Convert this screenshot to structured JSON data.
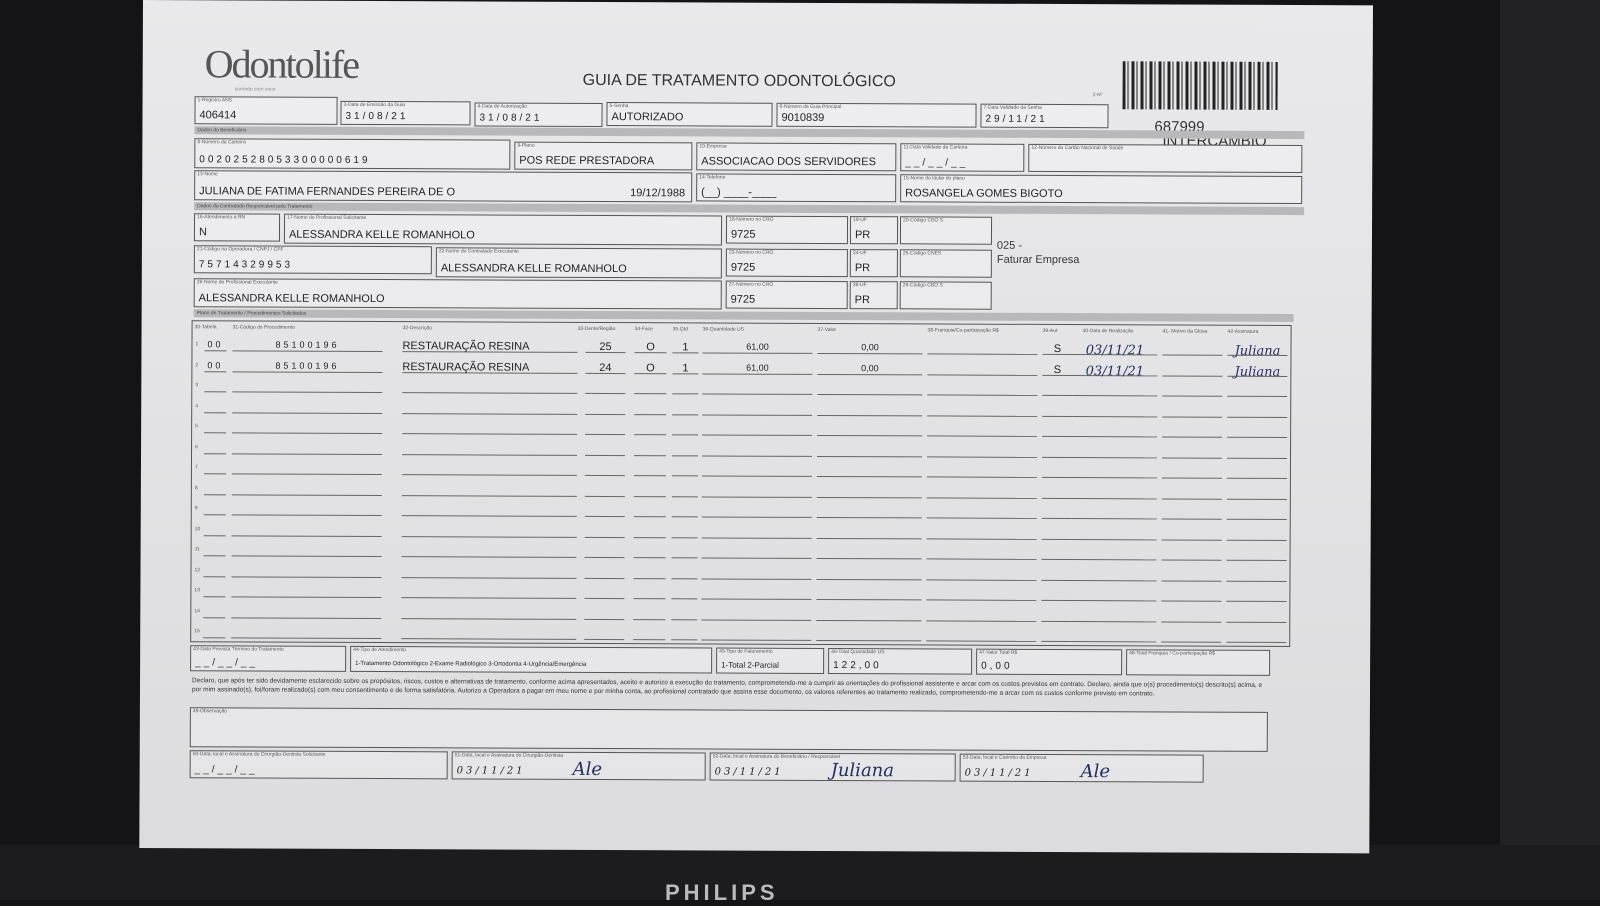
{
  "header": {
    "logo": "Odontolife",
    "logo_tagline": "sorrindo com voce",
    "title": "GUIA DE TRATAMENTO ODONTOLÓGICO",
    "via": "2-Nº",
    "guia_number": "687999",
    "guia_type": "INTERCÂMBIO"
  },
  "fields": {
    "registro_ans": {
      "label": "1-Registro ANS",
      "value": "406414"
    },
    "data_emissao": {
      "label": "3-Data de Emissão da Guia",
      "value": "31/08/21"
    },
    "data_autorizacao": {
      "label": "4-Data de Autorização",
      "value": "31/08/21"
    },
    "senha": {
      "label": "5-Senha",
      "value": "AUTORIZADO"
    },
    "guia_principal": {
      "label": "6-Número da Guia Principal",
      "value": "9010839"
    },
    "validade_senha": {
      "label": "7-Data Validade da Senha",
      "value": "29/11/21"
    },
    "carteira": {
      "label": "8-Número da Carteira",
      "value": "00202528053300000619"
    },
    "plano": {
      "label": "9-Plano",
      "value": "POS REDE PRESTADORA"
    },
    "empresa": {
      "label": "10-Empresa",
      "value": "ASSOCIACAO DOS SERVIDORES"
    },
    "validade_carteira": {
      "label": "11-Data Validade da Carteira",
      "value": "__/__/__"
    },
    "cns": {
      "label": "12-Número do Cartão Nacional de Saúde",
      "value": ""
    },
    "nome": {
      "label": "13-Nome",
      "value": "JULIANA DE FATIMA FERNANDES PEREIRA DE O",
      "birth": "19/12/1988"
    },
    "telefone": {
      "label": "14-Telefone",
      "value": "(__) ____-____"
    },
    "titular": {
      "label": "15-Nome do titular do plano",
      "value": "ROSANGELA GOMES BIGOTO"
    },
    "rn": {
      "label": "16-Atendimento a RN",
      "value": "N"
    },
    "prof_solicitante": {
      "label": "17-Nome do Profissional Solicitante",
      "value": "ALESSANDRA KELLE ROMANHOLO"
    },
    "cro18": {
      "label": "18-Número no CRO",
      "value": "9725"
    },
    "uf19": {
      "label": "19-UF",
      "value": "PR"
    },
    "cbo20": {
      "label": "20-Código CBO S",
      "value": ""
    },
    "cnpj": {
      "label": "21-Código na Operadora / CNPJ / CPF",
      "value": "75714329953"
    },
    "contratado": {
      "label": "22-Nome do Contratado Executante",
      "value": "ALESSANDRA KELLE ROMANHOLO"
    },
    "cro23": {
      "label": "23-Número no CRO",
      "value": "9725"
    },
    "uf24": {
      "label": "24-UF",
      "value": "PR"
    },
    "cnes": {
      "label": "25-Código CNES",
      "value": ""
    },
    "prof_executante": {
      "label": "26-Nome do Profissional Executante",
      "value": "ALESSANDRA KELLE ROMANHOLO"
    },
    "cro27": {
      "label": "27-Número no CRO",
      "value": "9725"
    },
    "uf28": {
      "label": "28-UF",
      "value": "PR"
    },
    "cbo29": {
      "label": "29-Código CBO S",
      "value": ""
    }
  },
  "sections": {
    "beneficiario": "Dados do Beneficiário",
    "contratado": "Dados do Contratado Responsável pelo Tratamento",
    "plano": "Plano de Tratamento / Procedimentos Solicitados"
  },
  "side_note": {
    "code": "025 -",
    "text": "Faturar Empresa"
  },
  "procedures": {
    "headers": [
      "30-Tabela",
      "31-Código do Procedimento",
      "32-Descrição",
      "33-Dente/Região",
      "34-Face",
      "35-Qtd",
      "36-Quantidade US",
      "37-Valor",
      "38-Franquia/Co-participação R$",
      "39-Aut",
      "40-Data de Realização",
      "41- Motivo da Glosa",
      "42-Assinatura"
    ],
    "rows": [
      {
        "n": "1",
        "tabela": "00",
        "codigo": "85100196",
        "descricao": "RESTAURAÇÃO RESINA",
        "dente": "25",
        "face": "O",
        "qtd": "1",
        "us": "61,00",
        "valor": "0,00",
        "franquia": "",
        "aut": "S",
        "data": "03/11/21",
        "glosa": "",
        "assinatura": "Juliana"
      },
      {
        "n": "2",
        "tabela": "00",
        "codigo": "85100196",
        "descricao": "RESTAURAÇÃO RESINA",
        "dente": "24",
        "face": "O",
        "qtd": "1",
        "us": "61,00",
        "valor": "0,00",
        "franquia": "",
        "aut": "S",
        "data": "03/11/21",
        "glosa": "",
        "assinatura": "Juliana"
      },
      {
        "n": "3"
      },
      {
        "n": "4"
      },
      {
        "n": "5"
      },
      {
        "n": "6"
      },
      {
        "n": "7"
      },
      {
        "n": "8"
      },
      {
        "n": "9"
      },
      {
        "n": "10"
      },
      {
        "n": "11"
      },
      {
        "n": "12"
      },
      {
        "n": "13"
      },
      {
        "n": "14"
      },
      {
        "n": "15"
      }
    ]
  },
  "totals": {
    "previsao": {
      "label": "43-Data Prevista Término do Tratamento",
      "value": "__/__/__"
    },
    "tipo_atendimento": {
      "label": "44-Tipo de Atendimento",
      "value": "1-Tratamento Odontológico  2-Exame Radiológico  3-Ortodontia  4-Urgência/Emergência"
    },
    "tipo_faturamento": {
      "label": "45-Tipo de Faturamento",
      "value": "1-Total  2-Parcial"
    },
    "total_us": {
      "label": "46-Total Quantidade US",
      "value": "122,00"
    },
    "valor_total": {
      "label": "47-Valor Total R$",
      "value": "0,00"
    },
    "total_franquia": {
      "label": "48-Total Franquia / Co-participação R$",
      "value": ""
    }
  },
  "declaration": "Declaro, que após ter sido devidamente esclarecido sobre os propósitos, riscos, custos e alternativas de tratamento, conforme acima apresentados, aceito e autorizo a execução do tratamento, comprometendo-me a cumprir as orientações do profissional assistente e arcar com os custos previstos em contrato. Declaro, ainda que o(s) procedimento(s) descrito(s) acima, e por mim assinado(s), foi/foram realizado(s) com meu consentimento e de forma satisfatória. Autorizo a Operadora a pagar em meu nome e por minha conta, ao profissional contratado que assina esse documento, os valores referentes ao tratamento realizado, comprometendo-me a arcar com os custos conforme previsto em contrato.",
  "observacao": {
    "label": "49-Observação",
    "value": ""
  },
  "signatures": {
    "s50": {
      "label": "50-Data, local e Assinatura do Cirurgião-Dentista Solicitante",
      "value": "__/__/__"
    },
    "s51": {
      "label": "51-Data, local e Assinatura do Cirurgião-Dentista",
      "value": "03/11/21",
      "sig": "Ale"
    },
    "s52": {
      "label": "52-Data, local e Assinatura do Beneficiário / Responsável",
      "value": "03/11/21",
      "sig": "Juliana"
    },
    "s53": {
      "label": "53-Data, local e Carimbo da Empresa",
      "value": "03/11/21",
      "sig": "Ale"
    }
  },
  "monitor": {
    "brand": "PHILIPS"
  },
  "colors": {
    "paper": "#e4e4e8",
    "background": "#141416",
    "ink": "#23305e"
  }
}
